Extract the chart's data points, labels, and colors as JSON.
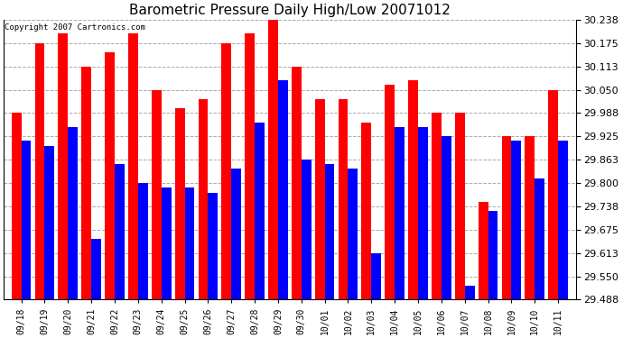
{
  "title": "Barometric Pressure Daily High/Low 20071012",
  "copyright": "Copyright 2007 Cartronics.com",
  "dates": [
    "09/18",
    "09/19",
    "09/20",
    "09/21",
    "09/22",
    "09/23",
    "09/24",
    "09/25",
    "09/26",
    "09/27",
    "09/28",
    "09/29",
    "09/30",
    "10/01",
    "10/02",
    "10/03",
    "10/04",
    "10/05",
    "10/06",
    "10/07",
    "10/08",
    "10/09",
    "10/10",
    "10/11"
  ],
  "highs": [
    29.988,
    30.175,
    30.2,
    30.113,
    30.15,
    30.2,
    30.05,
    30.0,
    30.025,
    30.175,
    30.2,
    30.238,
    30.113,
    30.025,
    30.025,
    29.963,
    30.063,
    30.075,
    29.988,
    29.988,
    29.75,
    29.925,
    29.925,
    30.05
  ],
  "lows": [
    29.913,
    29.9,
    29.95,
    29.65,
    29.85,
    29.8,
    29.788,
    29.788,
    29.775,
    29.838,
    29.963,
    30.075,
    29.863,
    29.85,
    29.838,
    29.613,
    29.95,
    29.95,
    29.925,
    29.525,
    29.725,
    29.913,
    29.813,
    29.913
  ],
  "high_color": "#ff0000",
  "low_color": "#0000ff",
  "bg_color": "#ffffff",
  "grid_color": "#aaaaaa",
  "yticks": [
    29.488,
    29.55,
    29.613,
    29.675,
    29.738,
    29.8,
    29.863,
    29.925,
    29.988,
    30.05,
    30.113,
    30.175,
    30.238
  ],
  "ymin": 29.488,
  "ymax": 30.238,
  "bar_width": 0.42
}
